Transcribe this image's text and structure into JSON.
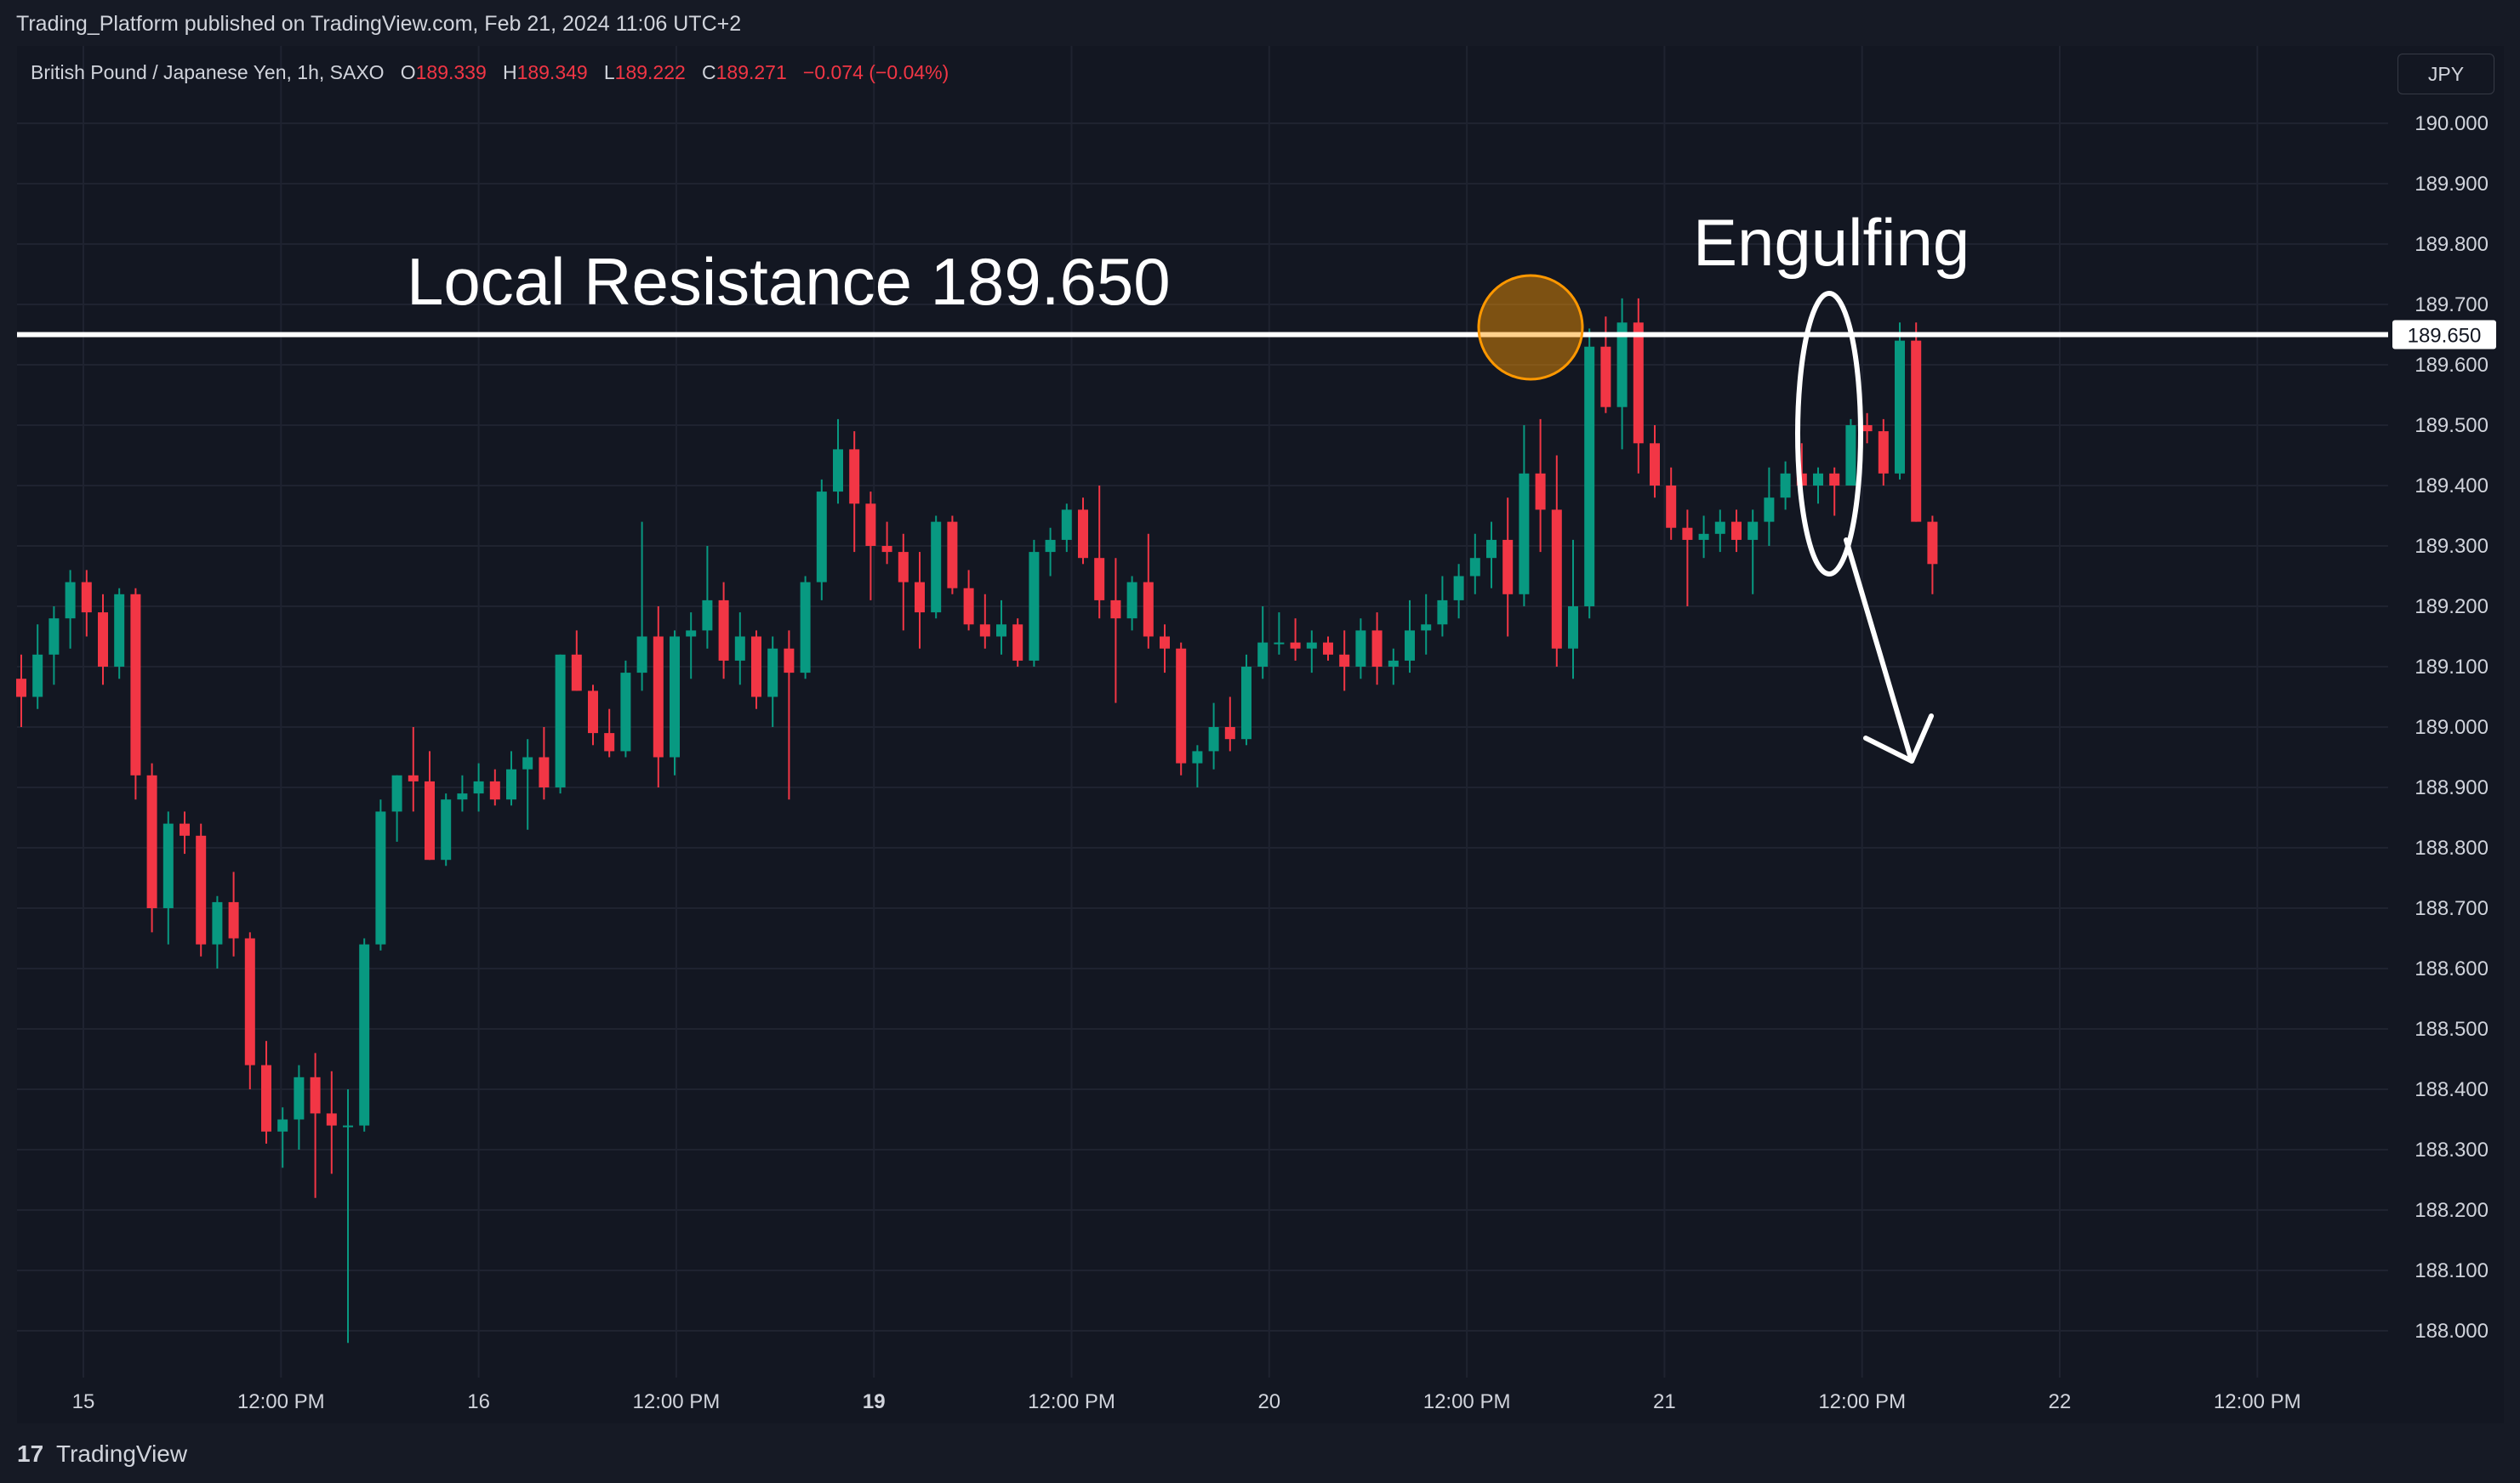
{
  "header": {
    "publish_text": "Trading_Platform published on TradingView.com, Feb 21, 2024 11:06 UTC+2"
  },
  "legend": {
    "symbol": "British Pound / Japanese Yen, 1h, SAXO",
    "o_label": "O",
    "o_value": "189.339",
    "h_label": "H",
    "h_value": "189.349",
    "l_label": "L",
    "l_value": "189.222",
    "c_label": "C",
    "c_value": "189.271",
    "change": "−0.074 (−0.04%)"
  },
  "currency_button": "JPY",
  "annotations": {
    "resistance_label": "Local Resistance 189.650",
    "engulfing_label": "Engulfing",
    "price_tag": "189.650"
  },
  "footer": {
    "logo": "17",
    "brand": "TradingView"
  },
  "colors": {
    "up": "#089981",
    "down": "#f23645",
    "background": "#131722",
    "grid": "#1f2330",
    "annotation": "#ffffff",
    "highlight_circle": "#ff9800"
  },
  "chart_data": {
    "type": "candlestick",
    "title": "",
    "xlabel": "",
    "ylabel": "",
    "ylim": [
      187.97,
      190.15
    ],
    "y_ticks": [
      "190.000",
      "189.900",
      "189.800",
      "189.700",
      "189.600",
      "189.500",
      "189.400",
      "189.300",
      "189.200",
      "189.100",
      "189.000",
      "188.900",
      "188.800",
      "188.700",
      "188.600",
      "188.500",
      "188.400",
      "188.300",
      "188.200",
      "188.100",
      "188.000"
    ],
    "x_ticks": [
      {
        "label": "15",
        "bold": false
      },
      {
        "label": "12:00 PM",
        "bold": false
      },
      {
        "label": "16",
        "bold": false
      },
      {
        "label": "12:00 PM",
        "bold": false
      },
      {
        "label": "19",
        "bold": true
      },
      {
        "label": "12:00 PM",
        "bold": false
      },
      {
        "label": "20",
        "bold": false
      },
      {
        "label": "12:00 PM",
        "bold": false
      },
      {
        "label": "21",
        "bold": false
      },
      {
        "label": "12:00 PM",
        "bold": false
      },
      {
        "label": "22",
        "bold": false
      },
      {
        "label": "12:00 PM",
        "bold": false
      }
    ],
    "resistance_level": 189.65,
    "candles": [
      [
        189.08,
        189.12,
        189.0,
        189.05
      ],
      [
        189.05,
        189.17,
        189.03,
        189.12
      ],
      [
        189.12,
        189.2,
        189.07,
        189.18
      ],
      [
        189.18,
        189.26,
        189.13,
        189.24
      ],
      [
        189.24,
        189.26,
        189.15,
        189.19
      ],
      [
        189.19,
        189.22,
        189.07,
        189.1
      ],
      [
        189.1,
        189.23,
        189.08,
        189.22
      ],
      [
        189.22,
        189.23,
        188.88,
        188.92
      ],
      [
        188.92,
        188.94,
        188.66,
        188.7
      ],
      [
        188.7,
        188.86,
        188.64,
        188.84
      ],
      [
        188.84,
        188.86,
        188.79,
        188.82
      ],
      [
        188.82,
        188.84,
        188.62,
        188.64
      ],
      [
        188.64,
        188.72,
        188.6,
        188.71
      ],
      [
        188.71,
        188.76,
        188.62,
        188.65
      ],
      [
        188.65,
        188.66,
        188.4,
        188.44
      ],
      [
        188.44,
        188.48,
        188.31,
        188.33
      ],
      [
        188.33,
        188.37,
        188.27,
        188.35
      ],
      [
        188.35,
        188.44,
        188.3,
        188.42
      ],
      [
        188.42,
        188.46,
        188.22,
        188.36
      ],
      [
        188.36,
        188.43,
        188.26,
        188.34
      ],
      [
        188.34,
        188.4,
        187.98,
        188.34
      ],
      [
        188.34,
        188.65,
        188.33,
        188.64
      ],
      [
        188.64,
        188.88,
        188.63,
        188.86
      ],
      [
        188.86,
        188.92,
        188.81,
        188.92
      ],
      [
        188.92,
        189.0,
        188.86,
        188.91
      ],
      [
        188.91,
        188.96,
        188.78,
        188.78
      ],
      [
        188.78,
        188.89,
        188.77,
        188.88
      ],
      [
        188.88,
        188.92,
        188.86,
        188.89
      ],
      [
        188.89,
        188.94,
        188.86,
        188.91
      ],
      [
        188.91,
        188.93,
        188.87,
        188.88
      ],
      [
        188.88,
        188.96,
        188.87,
        188.93
      ],
      [
        188.93,
        188.98,
        188.83,
        188.95
      ],
      [
        188.95,
        189.0,
        188.88,
        188.9
      ],
      [
        188.9,
        189.12,
        188.89,
        189.12
      ],
      [
        189.12,
        189.16,
        189.06,
        189.06
      ],
      [
        189.06,
        189.07,
        188.97,
        188.99
      ],
      [
        188.99,
        189.03,
        188.95,
        188.96
      ],
      [
        188.96,
        189.11,
        188.95,
        189.09
      ],
      [
        189.09,
        189.34,
        189.06,
        189.15
      ],
      [
        189.15,
        189.2,
        188.9,
        188.95
      ],
      [
        188.95,
        189.16,
        188.92,
        189.15
      ],
      [
        189.15,
        189.19,
        189.08,
        189.16
      ],
      [
        189.16,
        189.3,
        189.13,
        189.21
      ],
      [
        189.21,
        189.24,
        189.08,
        189.11
      ],
      [
        189.11,
        189.19,
        189.07,
        189.15
      ],
      [
        189.15,
        189.16,
        189.03,
        189.05
      ],
      [
        189.05,
        189.15,
        189.0,
        189.13
      ],
      [
        189.13,
        189.16,
        188.88,
        189.09
      ],
      [
        189.09,
        189.25,
        189.08,
        189.24
      ],
      [
        189.24,
        189.41,
        189.21,
        189.39
      ],
      [
        189.39,
        189.51,
        189.37,
        189.46
      ],
      [
        189.46,
        189.49,
        189.29,
        189.37
      ],
      [
        189.37,
        189.39,
        189.21,
        189.3
      ],
      [
        189.3,
        189.34,
        189.27,
        189.29
      ],
      [
        189.29,
        189.32,
        189.16,
        189.24
      ],
      [
        189.24,
        189.29,
        189.13,
        189.19
      ],
      [
        189.19,
        189.35,
        189.18,
        189.34
      ],
      [
        189.34,
        189.35,
        189.22,
        189.23
      ],
      [
        189.23,
        189.26,
        189.16,
        189.17
      ],
      [
        189.17,
        189.22,
        189.13,
        189.15
      ],
      [
        189.15,
        189.21,
        189.12,
        189.17
      ],
      [
        189.17,
        189.18,
        189.1,
        189.11
      ],
      [
        189.11,
        189.31,
        189.1,
        189.29
      ],
      [
        189.29,
        189.33,
        189.25,
        189.31
      ],
      [
        189.31,
        189.37,
        189.29,
        189.36
      ],
      [
        189.36,
        189.38,
        189.27,
        189.28
      ],
      [
        189.28,
        189.4,
        189.18,
        189.21
      ],
      [
        189.21,
        189.28,
        189.04,
        189.18
      ],
      [
        189.18,
        189.25,
        189.16,
        189.24
      ],
      [
        189.24,
        189.32,
        189.13,
        189.15
      ],
      [
        189.15,
        189.17,
        189.09,
        189.13
      ],
      [
        189.13,
        189.14,
        188.92,
        188.94
      ],
      [
        188.94,
        188.97,
        188.9,
        188.96
      ],
      [
        188.96,
        189.04,
        188.93,
        189.0
      ],
      [
        189.0,
        189.05,
        188.96,
        188.98
      ],
      [
        188.98,
        189.12,
        188.97,
        189.1
      ],
      [
        189.1,
        189.2,
        189.08,
        189.14
      ],
      [
        189.14,
        189.19,
        189.12,
        189.14
      ],
      [
        189.14,
        189.18,
        189.11,
        189.13
      ],
      [
        189.13,
        189.16,
        189.09,
        189.14
      ],
      [
        189.14,
        189.15,
        189.11,
        189.12
      ],
      [
        189.12,
        189.16,
        189.06,
        189.1
      ],
      [
        189.1,
        189.18,
        189.08,
        189.16
      ],
      [
        189.16,
        189.19,
        189.07,
        189.1
      ],
      [
        189.1,
        189.13,
        189.07,
        189.11
      ],
      [
        189.11,
        189.21,
        189.09,
        189.16
      ],
      [
        189.16,
        189.22,
        189.12,
        189.17
      ],
      [
        189.17,
        189.25,
        189.15,
        189.21
      ],
      [
        189.21,
        189.27,
        189.18,
        189.25
      ],
      [
        189.25,
        189.32,
        189.22,
        189.28
      ],
      [
        189.28,
        189.34,
        189.23,
        189.31
      ],
      [
        189.31,
        189.38,
        189.15,
        189.22
      ],
      [
        189.22,
        189.5,
        189.2,
        189.42
      ],
      [
        189.42,
        189.51,
        189.29,
        189.36
      ],
      [
        189.36,
        189.45,
        189.1,
        189.13
      ],
      [
        189.13,
        189.31,
        189.08,
        189.2
      ],
      [
        189.2,
        189.66,
        189.18,
        189.63
      ],
      [
        189.63,
        189.68,
        189.52,
        189.53
      ],
      [
        189.53,
        189.71,
        189.46,
        189.67
      ],
      [
        189.67,
        189.71,
        189.42,
        189.47
      ],
      [
        189.47,
        189.5,
        189.38,
        189.4
      ],
      [
        189.4,
        189.43,
        189.31,
        189.33
      ],
      [
        189.33,
        189.36,
        189.2,
        189.31
      ],
      [
        189.31,
        189.35,
        189.28,
        189.32
      ],
      [
        189.32,
        189.36,
        189.29,
        189.34
      ],
      [
        189.34,
        189.36,
        189.29,
        189.31
      ],
      [
        189.31,
        189.36,
        189.22,
        189.34
      ],
      [
        189.34,
        189.43,
        189.3,
        189.38
      ],
      [
        189.38,
        189.44,
        189.36,
        189.42
      ],
      [
        189.42,
        189.47,
        189.37,
        189.4
      ],
      [
        189.4,
        189.43,
        189.37,
        189.42
      ],
      [
        189.42,
        189.43,
        189.35,
        189.4
      ],
      [
        189.4,
        189.51,
        189.4,
        189.5
      ],
      [
        189.5,
        189.52,
        189.47,
        189.49
      ],
      [
        189.49,
        189.51,
        189.4,
        189.42
      ],
      [
        189.42,
        189.67,
        189.41,
        189.64
      ],
      [
        189.64,
        189.67,
        189.34,
        189.34
      ],
      [
        189.34,
        189.35,
        189.22,
        189.27
      ]
    ]
  }
}
